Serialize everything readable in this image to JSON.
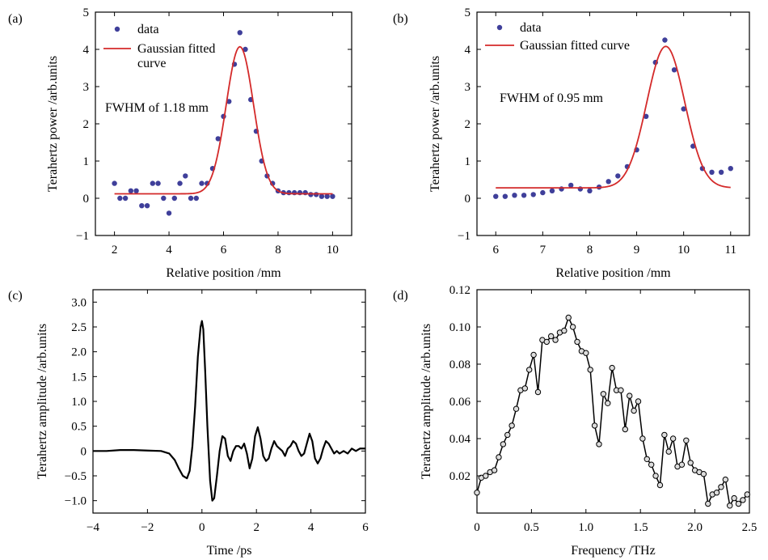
{
  "chart_data": [
    {
      "panel": "(a)",
      "type": "scatter",
      "xlabel": "Relative position /mm",
      "ylabel": "Terahertz power /arb.units",
      "xlim": [
        1.3,
        10.7
      ],
      "ylim": [
        -1,
        5
      ],
      "xticks": [
        2,
        4,
        6,
        8,
        10
      ],
      "yticks": [
        -1,
        0,
        1,
        2,
        3,
        4,
        5
      ],
      "legend": [
        "data",
        "Gaussian fitted",
        "curve"
      ],
      "annotation": "FWHM of 1.18 mm",
      "series": [
        {
          "kind": "points",
          "color": "#3f3f9a",
          "x": [
            2.0,
            2.2,
            2.4,
            2.6,
            2.8,
            3.0,
            3.2,
            3.4,
            3.6,
            3.8,
            4.0,
            4.2,
            4.4,
            4.6,
            4.8,
            5.0,
            5.2,
            5.4,
            5.6,
            5.8,
            6.0,
            6.2,
            6.4,
            6.6,
            6.8,
            7.0,
            7.2,
            7.4,
            7.6,
            7.8,
            8.0,
            8.2,
            8.4,
            8.6,
            8.8,
            9.0,
            9.2,
            9.4,
            9.6,
            9.8,
            10.0
          ],
          "y": [
            0.4,
            0.0,
            0.0,
            0.2,
            0.2,
            -0.2,
            -0.2,
            0.4,
            0.4,
            0.0,
            -0.4,
            0.0,
            0.4,
            0.6,
            0.0,
            0.0,
            0.4,
            0.4,
            0.8,
            1.6,
            2.2,
            2.6,
            3.6,
            4.45,
            4.0,
            2.65,
            1.8,
            1.0,
            0.6,
            0.4,
            0.2,
            0.15,
            0.15,
            0.15,
            0.15,
            0.15,
            0.1,
            0.1,
            0.05,
            0.05,
            0.05
          ]
        },
        {
          "kind": "gaussian",
          "color": "#d42a2a",
          "baseline": 0.12,
          "amplitude": 3.95,
          "center": 6.6,
          "fwhm": 1.18,
          "xrange": [
            2.0,
            10.0
          ]
        }
      ]
    },
    {
      "panel": "(b)",
      "type": "scatter",
      "xlabel": "Relative position /mm",
      "ylabel": "Terahertz power /arb.units",
      "xlim": [
        5.6,
        11.4
      ],
      "ylim": [
        -1,
        5
      ],
      "xticks": [
        6,
        7,
        8,
        9,
        10,
        11
      ],
      "yticks": [
        -1,
        0,
        1,
        2,
        3,
        4,
        5
      ],
      "legend": [
        "data",
        "Gaussian fitted curve"
      ],
      "annotation": "FWHM of 0.95 mm",
      "series": [
        {
          "kind": "points",
          "color": "#3f3f9a",
          "x": [
            6.0,
            6.2,
            6.4,
            6.6,
            6.8,
            7.0,
            7.2,
            7.4,
            7.6,
            7.8,
            8.0,
            8.2,
            8.4,
            8.6,
            8.8,
            9.0,
            9.2,
            9.4,
            9.6,
            9.8,
            10.0,
            10.2,
            10.4,
            10.6,
            10.8,
            11.0
          ],
          "y": [
            0.05,
            0.05,
            0.08,
            0.08,
            0.1,
            0.15,
            0.2,
            0.25,
            0.35,
            0.25,
            0.2,
            0.3,
            0.45,
            0.6,
            0.85,
            1.3,
            2.2,
            3.65,
            4.25,
            3.45,
            2.4,
            1.4,
            0.8,
            0.7,
            0.7,
            0.8
          ]
        },
        {
          "kind": "gaussian",
          "color": "#d42a2a",
          "baseline": 0.28,
          "amplitude": 3.8,
          "center": 9.62,
          "fwhm": 0.95,
          "xrange": [
            6.0,
            11.0
          ]
        }
      ]
    },
    {
      "panel": "(c)",
      "type": "line",
      "xlabel": "Time /ps",
      "ylabel": "Terahertz amplitude /arb.units",
      "xlim": [
        -4,
        6
      ],
      "ylim": [
        -1.25,
        3.25
      ],
      "xticks": [
        -4,
        -2,
        0,
        2,
        4,
        6
      ],
      "yticks": [
        -1.0,
        -0.5,
        0,
        0.5,
        1.0,
        1.5,
        2.0,
        2.5,
        3.0
      ],
      "ytick_labels": [
        "−1.0",
        "−0.5",
        "0",
        "0.5",
        "1.0",
        "1.5",
        "2.0",
        "2.5",
        "3.0"
      ],
      "xtick_labels": [
        "−4",
        "−2",
        "0",
        "2",
        "4",
        "6"
      ],
      "series": [
        {
          "color": "#000000",
          "x": [
            -4.0,
            -3.5,
            -3.0,
            -2.5,
            -2.0,
            -1.5,
            -1.2,
            -1.0,
            -0.85,
            -0.7,
            -0.55,
            -0.45,
            -0.35,
            -0.25,
            -0.15,
            -0.05,
            0.0,
            0.05,
            0.12,
            0.2,
            0.3,
            0.38,
            0.45,
            0.55,
            0.65,
            0.75,
            0.85,
            0.95,
            1.05,
            1.15,
            1.25,
            1.35,
            1.45,
            1.55,
            1.65,
            1.75,
            1.85,
            1.95,
            2.05,
            2.15,
            2.25,
            2.35,
            2.45,
            2.55,
            2.65,
            2.75,
            2.85,
            2.95,
            3.05,
            3.15,
            3.25,
            3.35,
            3.45,
            3.55,
            3.65,
            3.75,
            3.85,
            3.95,
            4.05,
            4.15,
            4.25,
            4.35,
            4.45,
            4.55,
            4.65,
            4.75,
            4.85,
            4.95,
            5.05,
            5.2,
            5.35,
            5.5,
            5.65,
            5.8,
            6.0
          ],
          "y": [
            0.0,
            0.0,
            0.02,
            0.02,
            0.01,
            0.0,
            -0.05,
            -0.18,
            -0.35,
            -0.5,
            -0.55,
            -0.4,
            0.1,
            0.9,
            1.9,
            2.5,
            2.62,
            2.45,
            1.6,
            0.5,
            -0.6,
            -1.0,
            -0.95,
            -0.5,
            0.0,
            0.3,
            0.25,
            -0.1,
            -0.2,
            0.0,
            0.1,
            0.1,
            0.05,
            0.15,
            -0.05,
            -0.35,
            -0.15,
            0.3,
            0.48,
            0.25,
            -0.1,
            -0.2,
            -0.15,
            0.05,
            0.2,
            0.1,
            0.05,
            0.0,
            -0.1,
            0.05,
            0.1,
            0.2,
            0.15,
            0.0,
            -0.1,
            -0.05,
            0.15,
            0.35,
            0.2,
            -0.15,
            -0.25,
            -0.15,
            0.05,
            0.2,
            0.15,
            0.05,
            -0.05,
            0.0,
            -0.05,
            0.0,
            -0.05,
            0.05,
            0.0,
            0.05,
            0.05
          ]
        }
      ]
    },
    {
      "panel": "(d)",
      "type": "line",
      "xlabel": "Frequency /THz",
      "ylabel": "Terahertz amplitude /arb.units",
      "xlim": [
        0,
        2.5
      ],
      "ylim": [
        0,
        0.12
      ],
      "xticks": [
        0,
        0.5,
        1.0,
        1.5,
        2.0,
        2.5
      ],
      "xtick_labels": [
        "0",
        "0.5",
        "1.0",
        "1.5",
        "2.0",
        "2.5"
      ],
      "yticks": [
        0.02,
        0.04,
        0.06,
        0.08,
        0.1,
        0.12
      ],
      "ytick_labels": [
        "0.02",
        "0.04",
        "0.06",
        "0.08",
        "0.10",
        "0.12"
      ],
      "series": [
        {
          "color": "#000000",
          "marker": "circle",
          "x": [
            0.0,
            0.04,
            0.08,
            0.12,
            0.16,
            0.2,
            0.24,
            0.28,
            0.32,
            0.36,
            0.4,
            0.44,
            0.48,
            0.52,
            0.56,
            0.6,
            0.64,
            0.68,
            0.72,
            0.76,
            0.8,
            0.84,
            0.88,
            0.92,
            0.96,
            1.0,
            1.04,
            1.08,
            1.12,
            1.16,
            1.2,
            1.24,
            1.28,
            1.32,
            1.36,
            1.4,
            1.44,
            1.48,
            1.52,
            1.56,
            1.6,
            1.64,
            1.68,
            1.72,
            1.76,
            1.8,
            1.84,
            1.88,
            1.92,
            1.96,
            2.0,
            2.04,
            2.08,
            2.12,
            2.16,
            2.2,
            2.24,
            2.28,
            2.32,
            2.36,
            2.4,
            2.44,
            2.48
          ],
          "y": [
            0.011,
            0.019,
            0.02,
            0.022,
            0.023,
            0.03,
            0.037,
            0.042,
            0.047,
            0.056,
            0.066,
            0.067,
            0.077,
            0.085,
            0.065,
            0.093,
            0.092,
            0.095,
            0.093,
            0.097,
            0.098,
            0.105,
            0.1,
            0.092,
            0.087,
            0.086,
            0.077,
            0.047,
            0.037,
            0.064,
            0.059,
            0.078,
            0.066,
            0.066,
            0.045,
            0.063,
            0.055,
            0.06,
            0.04,
            0.029,
            0.026,
            0.02,
            0.015,
            0.042,
            0.033,
            0.04,
            0.025,
            0.026,
            0.039,
            0.027,
            0.023,
            0.022,
            0.021,
            0.005,
            0.01,
            0.011,
            0.014,
            0.018,
            0.004,
            0.008,
            0.005,
            0.007,
            0.01
          ]
        }
      ]
    }
  ]
}
